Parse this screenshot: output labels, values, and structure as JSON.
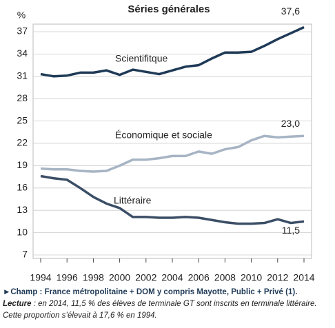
{
  "chart_data": {
    "type": "line",
    "title": "Séries générales",
    "y_label": "%",
    "x": [
      1994,
      1995,
      1996,
      1997,
      1998,
      1999,
      2000,
      2001,
      2002,
      2003,
      2004,
      2005,
      2006,
      2007,
      2008,
      2009,
      2010,
      2011,
      2012,
      2013,
      2014
    ],
    "series": [
      {
        "name": "Scientifitque",
        "color": "#1f3a57",
        "values": [
          31.3,
          31.0,
          31.1,
          31.5,
          31.5,
          31.8,
          31.2,
          31.9,
          31.6,
          31.3,
          31.8,
          32.3,
          32.5,
          33.4,
          34.2,
          34.2,
          34.3,
          35.1,
          36.0,
          36.8,
          37.6
        ],
        "value_labels": [
          null,
          null,
          null,
          null,
          null,
          null,
          null,
          null,
          null,
          null,
          null,
          null,
          null,
          null,
          null,
          null,
          null,
          null,
          null,
          null,
          "37,6"
        ]
      },
      {
        "name": "Économique et sociale",
        "color": "#a7b4c4",
        "values": [
          18.6,
          18.5,
          18.5,
          18.3,
          18.2,
          18.3,
          19.0,
          19.8,
          19.8,
          20.0,
          20.3,
          20.3,
          20.9,
          20.6,
          21.2,
          21.5,
          22.4,
          23.0,
          22.8,
          22.9,
          23.0
        ],
        "value_labels": [
          null,
          null,
          null,
          null,
          null,
          null,
          null,
          null,
          null,
          null,
          null,
          null,
          null,
          null,
          null,
          null,
          null,
          null,
          null,
          null,
          "23,0"
        ]
      },
      {
        "name": "Littéraire",
        "color": "#3b4e66",
        "values": [
          17.6,
          17.3,
          17.1,
          16.0,
          14.8,
          13.9,
          13.3,
          12.1,
          12.1,
          12.0,
          12.0,
          12.1,
          12.0,
          11.7,
          11.4,
          11.2,
          11.2,
          11.3,
          11.8,
          11.3,
          11.5
        ],
        "value_labels": [
          null,
          null,
          null,
          null,
          null,
          null,
          null,
          null,
          null,
          null,
          null,
          null,
          null,
          null,
          null,
          null,
          null,
          null,
          null,
          null,
          "11,5"
        ]
      }
    ],
    "xlim": [
      1994,
      2014
    ],
    "xticks": [
      1994,
      1996,
      1998,
      2000,
      2002,
      2004,
      2006,
      2008,
      2010,
      2012,
      2014
    ],
    "ylim": [
      7,
      37
    ],
    "yticks": [
      7,
      10,
      13,
      16,
      19,
      22,
      25,
      28,
      31,
      34,
      37
    ],
    "grid": true
  },
  "notes": {
    "champ": "►Champ : France métropolitaine + DOM y compris Mayotte, Public + Privé (1).",
    "lecture_label": "Lecture",
    "lecture_text": " : en 2014, 11,5 % des élèves de terminale GT sont inscrits en terminale littéraire. Cette proportion s’élevait à 17,6 % en 1994."
  }
}
